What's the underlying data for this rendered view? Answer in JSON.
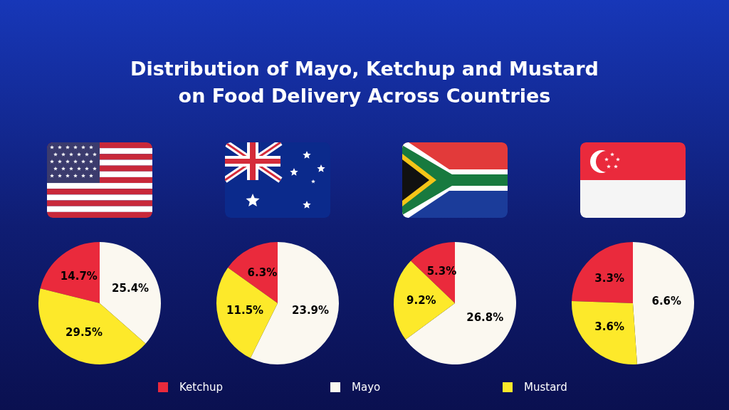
{
  "chart_data": [
    {
      "type": "pie",
      "title": "Distribution of Mayo, Ketchup and Mustard\non Food Delivery Across Countries",
      "categories": [
        "Ketchup",
        "Mayo",
        "Mustard"
      ],
      "values": [
        14.7,
        25.4,
        29.5
      ],
      "value_labels": [
        "14.7%",
        "25.4%",
        "29.5%"
      ],
      "colors": [
        "#ea2a3c",
        "#fbf8f0",
        "#fde92a"
      ],
      "legend": "bottom"
    },
    {
      "type": "pie",
      "categories": [
        null,
        null,
        null
      ],
      "values": [
        6.3,
        23.9,
        11.5
      ],
      "value_labels": [
        "6.3%",
        "23.9%",
        "11.5%"
      ],
      "colors": [
        "#ea2a3c",
        "#fbf8f0",
        "#fde92a"
      ]
    },
    {
      "type": "pie",
      "categories": [
        null,
        null,
        null
      ],
      "values": [
        5.3,
        26.8,
        9.2
      ],
      "value_labels": [
        "5.3%",
        "26.8%",
        "9.2%"
      ],
      "colors": [
        "#ea2a3c",
        "#fbf8f0",
        "#fde92a"
      ]
    },
    {
      "type": "pie",
      "categories": [
        null,
        null,
        null
      ],
      "values": [
        3.3,
        6.6,
        3.6
      ],
      "value_labels": [
        "3.3%",
        "6.6%",
        "3.6%"
      ],
      "colors": [
        "#ea2a3c",
        "#fbf8f0",
        "#fde92a"
      ]
    }
  ]
}
